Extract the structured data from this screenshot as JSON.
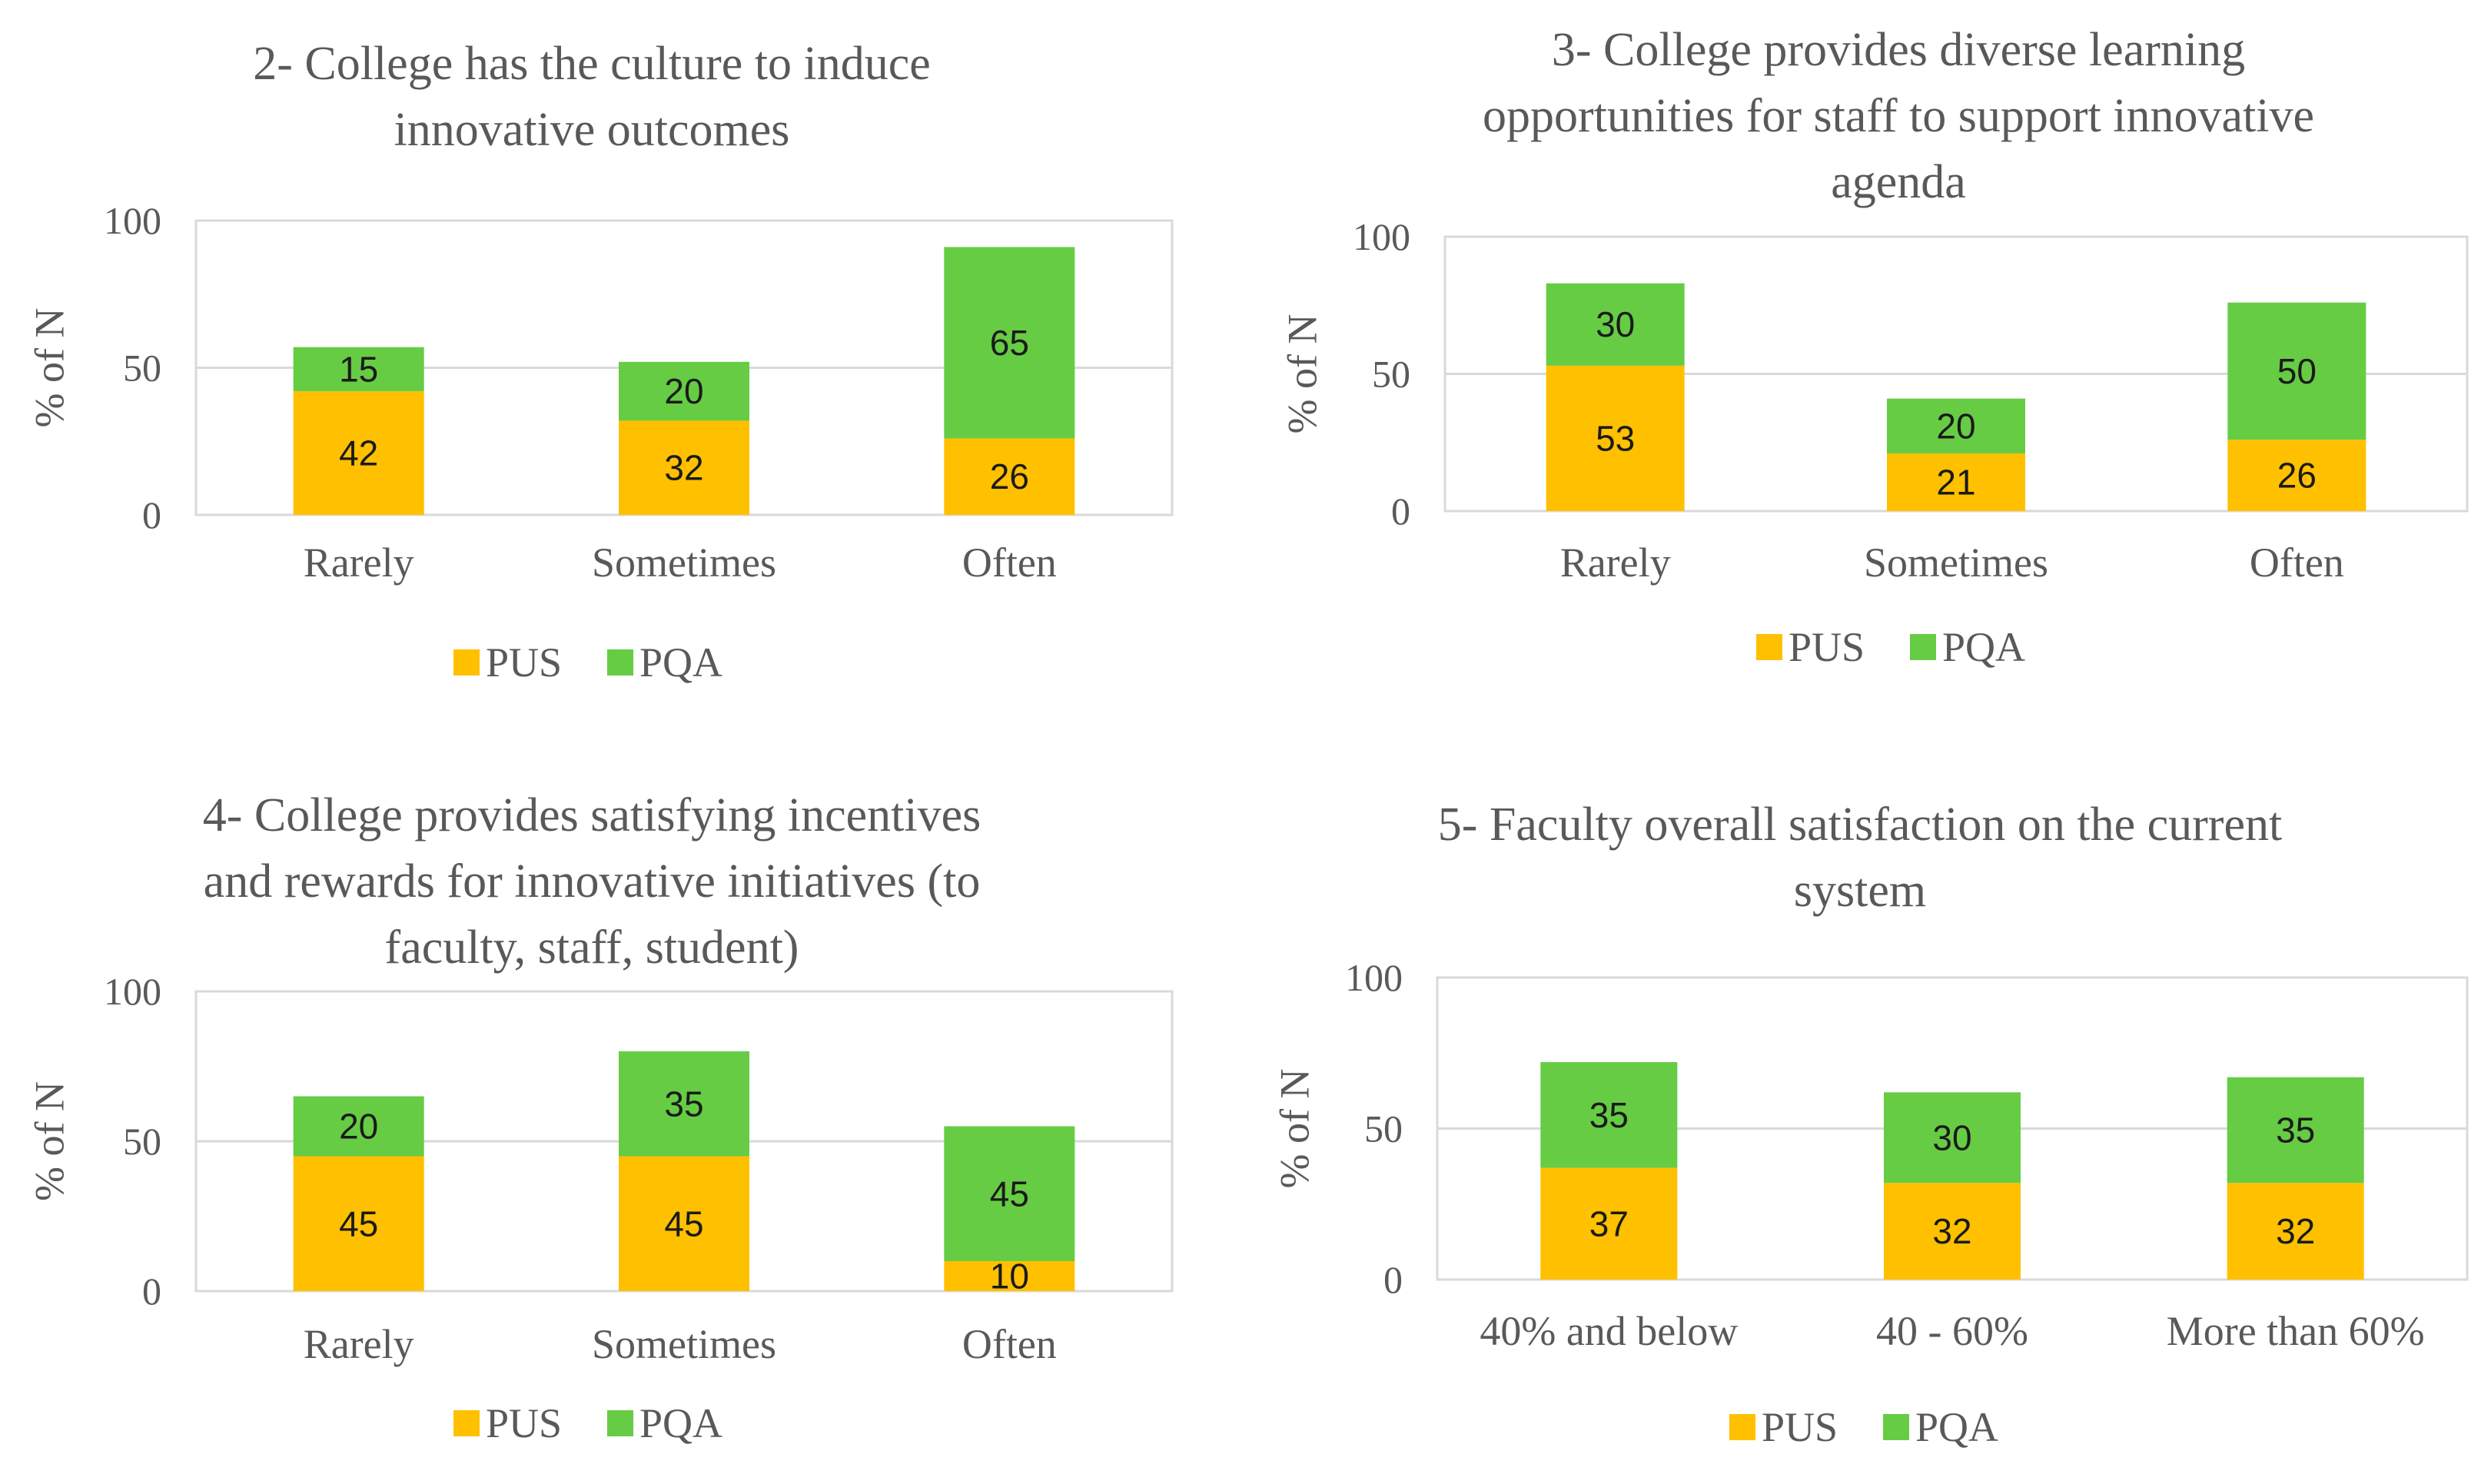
{
  "colors": {
    "PUS": "#FFC000",
    "PQA": "#66CC44",
    "grid": "#D9D9D9",
    "text": "#595959"
  },
  "chart_data": [
    {
      "type": "bar",
      "stacked": true,
      "title_lines": [
        "2- College has the culture to induce",
        "innovative outcomes"
      ],
      "categories": [
        "Rarely",
        "Sometimes",
        "Often"
      ],
      "series": [
        {
          "name": "PUS",
          "values": [
            42,
            32,
            26
          ]
        },
        {
          "name": "PQA",
          "values": [
            15,
            20,
            65
          ]
        }
      ],
      "ylabel": "% of N",
      "yticks": [
        "0",
        "50",
        "100"
      ],
      "ylim": [
        0,
        100
      ],
      "legend": "bottom"
    },
    {
      "type": "bar",
      "stacked": true,
      "title_lines": [
        "3- College provides diverse learning",
        "opportunities for staff to support innovative",
        "agenda"
      ],
      "categories": [
        "Rarely",
        "Sometimes",
        "Often"
      ],
      "series": [
        {
          "name": "PUS",
          "values": [
            53,
            21,
            26
          ]
        },
        {
          "name": "PQA",
          "values": [
            30,
            20,
            50
          ]
        }
      ],
      "ylabel": "% of N",
      "yticks": [
        "0",
        "50",
        "100"
      ],
      "ylim": [
        0,
        100
      ],
      "legend": "bottom"
    },
    {
      "type": "bar",
      "stacked": true,
      "title_lines": [
        "4- College provides satisfying incentives",
        "and rewards for innovative initiatives (to",
        "faculty, staff, student)"
      ],
      "categories": [
        "Rarely",
        "Sometimes",
        "Often"
      ],
      "series": [
        {
          "name": "PUS",
          "values": [
            45,
            45,
            10
          ]
        },
        {
          "name": "PQA",
          "values": [
            20,
            35,
            45
          ]
        }
      ],
      "ylabel": "% of N",
      "yticks": [
        "0",
        "50",
        "100"
      ],
      "ylim": [
        0,
        100
      ],
      "legend": "bottom"
    },
    {
      "type": "bar",
      "stacked": true,
      "title_lines": [
        "5- Faculty overall satisfaction on the current",
        "system"
      ],
      "categories": [
        "40% and below",
        "40 - 60%",
        "More than 60%"
      ],
      "series": [
        {
          "name": "PUS",
          "values": [
            37,
            32,
            32
          ]
        },
        {
          "name": "PQA",
          "values": [
            35,
            30,
            35
          ]
        }
      ],
      "ylabel": "% of N",
      "yticks": [
        "0",
        "50",
        "100"
      ],
      "ylim": [
        0,
        100
      ],
      "legend": "bottom"
    }
  ]
}
